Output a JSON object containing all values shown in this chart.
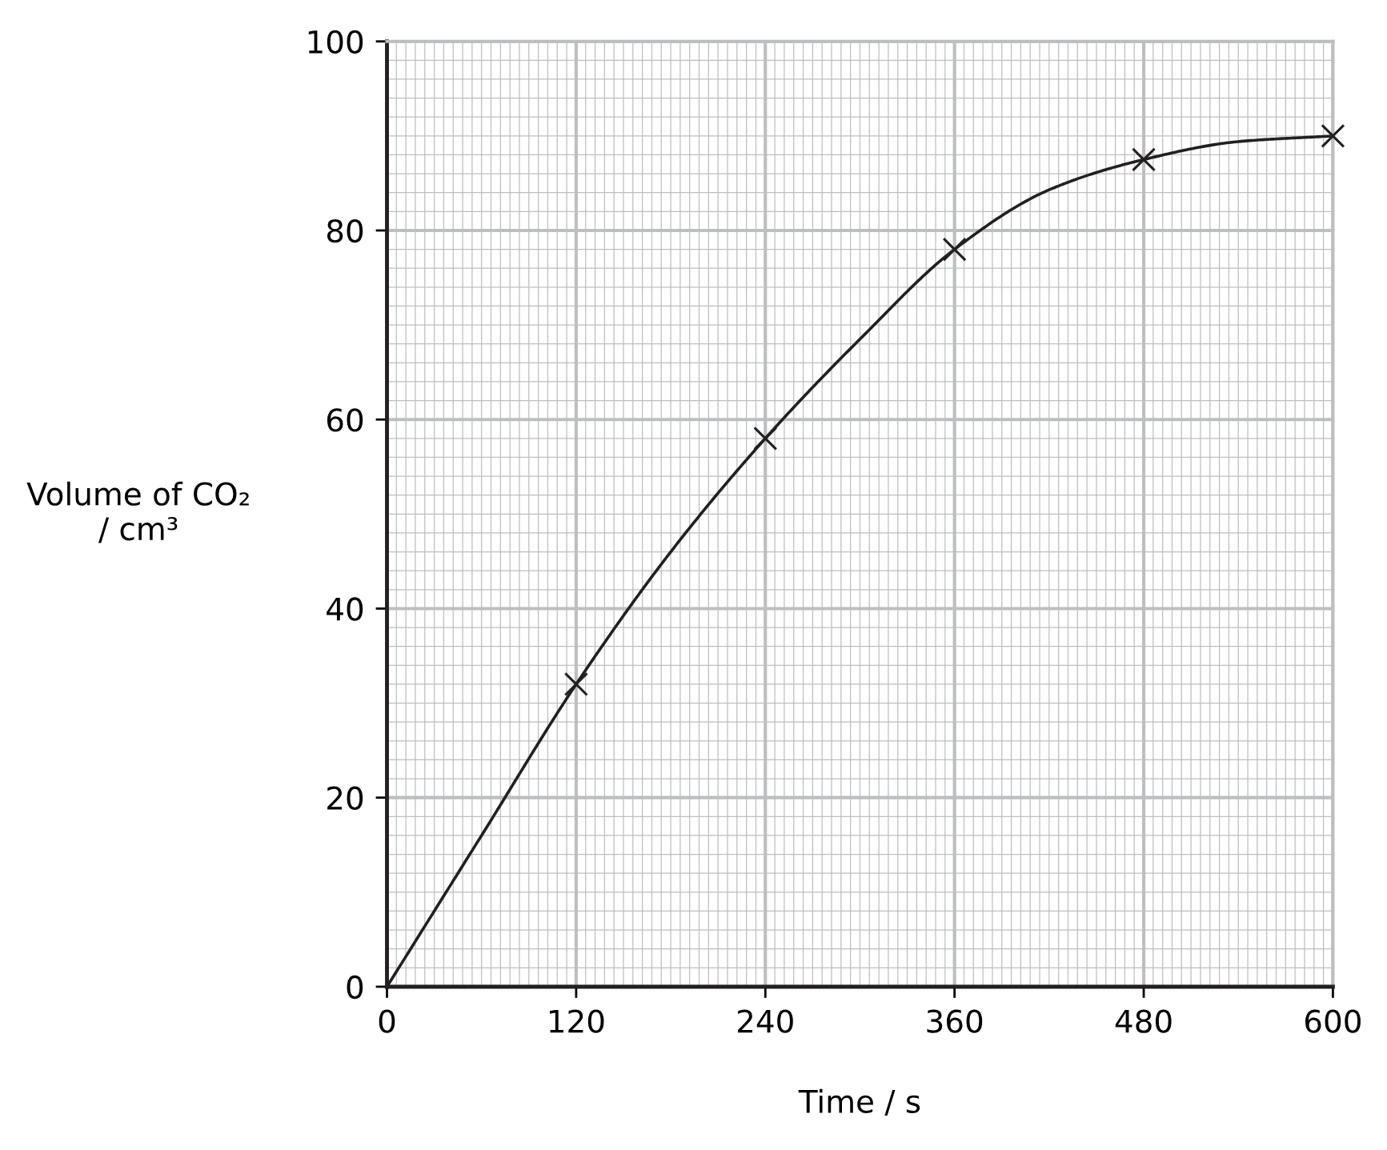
{
  "chart_data": {
    "type": "scatter",
    "xlabel": "Time / s",
    "ylabel": "Volume of CO₂\n/ cm³",
    "xlim": [
      0,
      600
    ],
    "ylim": [
      0,
      100
    ],
    "xticks": [
      0,
      120,
      240,
      360,
      480,
      600
    ],
    "yticks": [
      0,
      20,
      40,
      60,
      80,
      100
    ],
    "grid": true,
    "series": [
      {
        "color": "#231f20",
        "marker": "cross",
        "x": [
          120,
          240,
          360,
          480,
          600
        ],
        "values": [
          32,
          58,
          78,
          87.5,
          90
        ]
      },
      {
        "type": "line",
        "color": "#231f20",
        "marker": "none",
        "line_style": "solid",
        "x": [
          0,
          60,
          120,
          180,
          240,
          300,
          360,
          420,
          480,
          540,
          600
        ],
        "values": [
          0,
          16,
          32,
          46,
          58,
          68.5,
          78,
          84.3,
          87.5,
          89.4,
          90
        ]
      }
    ]
  }
}
